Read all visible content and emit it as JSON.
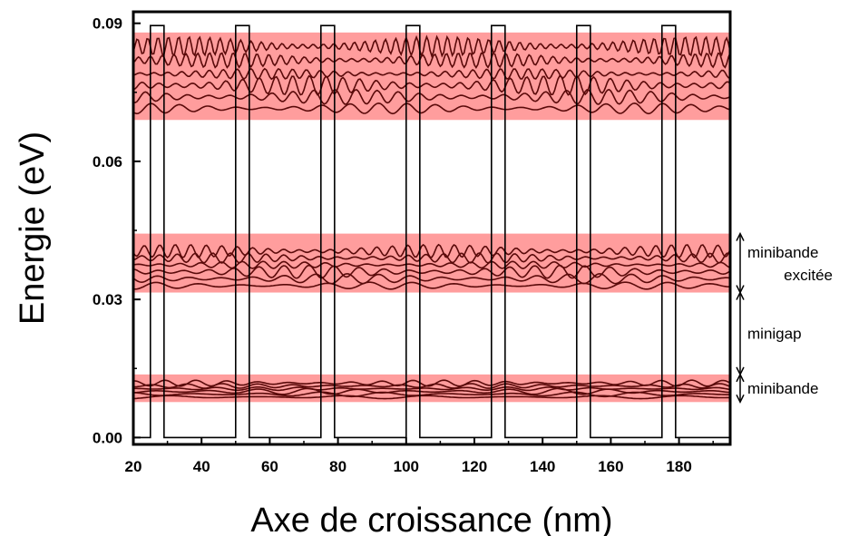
{
  "chart_data": {
    "type": "line",
    "title": "",
    "xlabel": "Axe de croissance (nm)",
    "ylabel": "Energie (eV)",
    "xlim": [
      20,
      195
    ],
    "ylim": [
      -0.0015,
      0.0925
    ],
    "xticks": [
      20,
      40,
      60,
      80,
      100,
      120,
      140,
      160,
      180
    ],
    "xtick_labels": [
      "20",
      "40",
      "60",
      "80",
      "100",
      "120",
      "140",
      "160",
      "180"
    ],
    "yticks": [
      0.0,
      0.03,
      0.06,
      0.09
    ],
    "ytick_labels": [
      "0.00",
      "0.03",
      "0.06",
      "0.09"
    ],
    "grid": false,
    "colors": {
      "band_fill": "#ff9d9d",
      "wavefunction": "#5a0a0a",
      "potential": "#000000"
    },
    "potential_profile": {
      "barrier_height": 0.0895,
      "baseline": 0.0,
      "barriers": [
        [
          25,
          29
        ],
        [
          50,
          54
        ],
        [
          75,
          79
        ],
        [
          100,
          104
        ],
        [
          125,
          129
        ],
        [
          150,
          154
        ],
        [
          175,
          179
        ]
      ]
    },
    "bands": [
      {
        "name": "minibande",
        "range": [
          0.0077,
          0.0137
        ],
        "levels": [
          0.0088,
          0.0094,
          0.01,
          0.0106,
          0.0112,
          0.0118
        ]
      },
      {
        "name": "minibande excitée",
        "range": [
          0.0315,
          0.0443
        ],
        "levels": [
          0.033,
          0.0345,
          0.036,
          0.0375,
          0.039,
          0.0405
        ]
      },
      {
        "name": "",
        "range": [
          0.069,
          0.088
        ],
        "levels": [
          0.0715,
          0.074,
          0.0765,
          0.079,
          0.082,
          0.085
        ]
      }
    ],
    "annotations": [
      {
        "text": "minibande",
        "y_range": [
          0.0077,
          0.0137
        ]
      },
      {
        "text": "minigap",
        "y_range": [
          0.0137,
          0.0315
        ]
      },
      {
        "text_lines": [
          "minibande",
          "excitée"
        ],
        "y_range": [
          0.0315,
          0.0443
        ]
      }
    ]
  }
}
